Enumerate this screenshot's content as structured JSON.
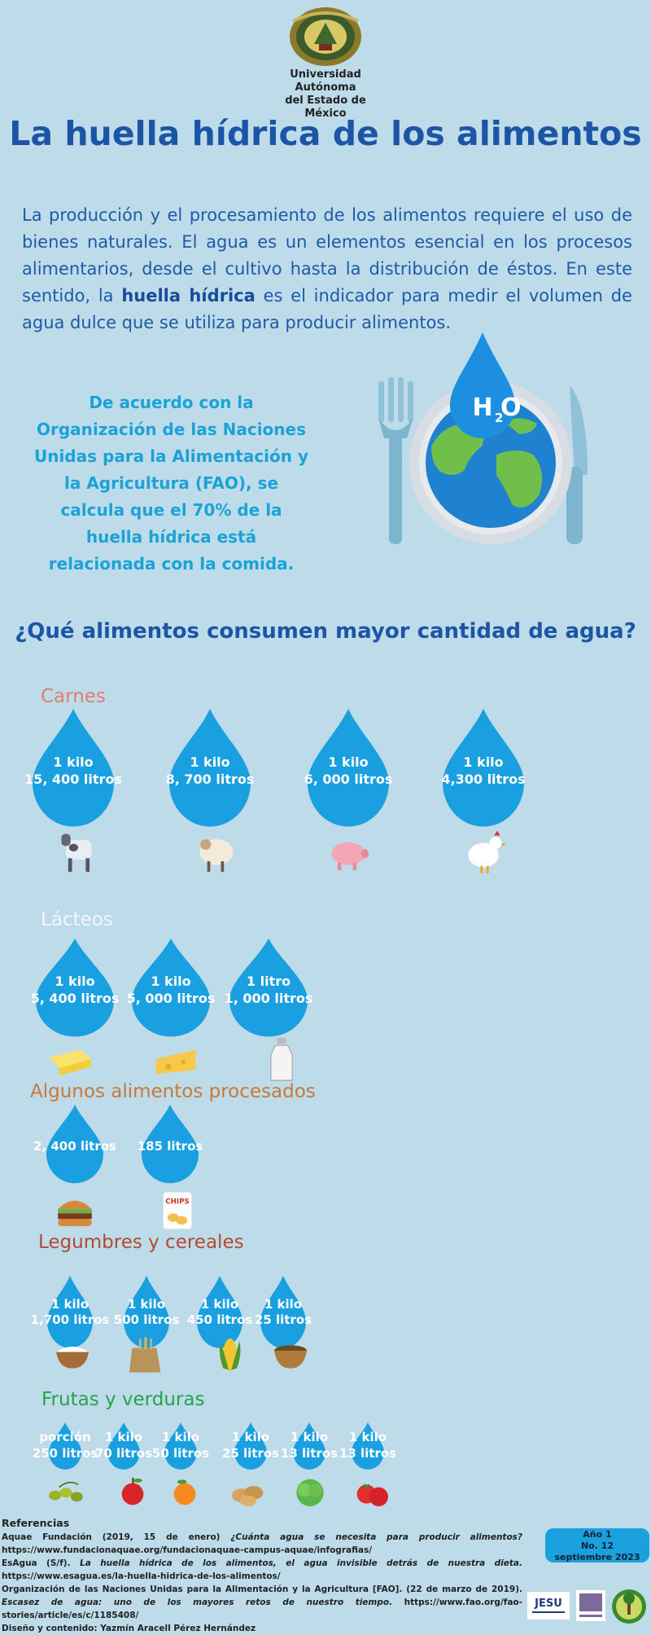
{
  "header": {
    "uni_line1": "Universidad Autónoma",
    "uni_line2": "del Estado de México"
  },
  "title": "La huella hídrica de los alimentos",
  "intro": {
    "before": "La producción y el procesamiento de los alimentos requiere el uso de bienes naturales. El agua es un elementos esencial  en los procesos alimentarios, desde el cultivo hasta la distribución de éstos. En este sentido, la ",
    "bold": "huella hídrica",
    "after": " es el indicador para medir el volumen de agua dulce que se utiliza para producir alimentos."
  },
  "fao_text": "De acuerdo con la Organización de las Naciones Unidas para la Alimentación y la Agricultura (FAO), se calcula que el 70% de la huella hídrica está relacionada con la comida.",
  "h2o": "H2O",
  "question": "¿Qué alimentos consumen mayor cantidad de agua?",
  "sections": [
    {
      "title": "Carnes",
      "color": "#e07f6e",
      "items": [
        {
          "l1": "1 kilo",
          "l2": "15, 400 litros",
          "icon": "cow-icon"
        },
        {
          "l1": "1 kilo",
          "l2": "8, 700 litros",
          "icon": "sheep-icon"
        },
        {
          "l1": "1 kilo",
          "l2": "6, 000 litros",
          "icon": "pig-icon"
        },
        {
          "l1": "1 kilo",
          "l2": "4,300 litros",
          "icon": "chicken-icon"
        }
      ]
    },
    {
      "title": "Lácteos",
      "color": "#f4f7fa",
      "items": [
        {
          "l1": "1 kilo",
          "l2": "5, 400 litros",
          "icon": "butter-icon"
        },
        {
          "l1": "1 kilo",
          "l2": "5, 000 litros",
          "icon": "cheese-icon"
        },
        {
          "l1": "1 litro",
          "l2": "1, 000 litros",
          "icon": "milk-bottle-icon"
        }
      ]
    },
    {
      "title": "Algunos alimentos procesados",
      "color": "#c9783a",
      "items": [
        {
          "l1": "",
          "l2": "2, 400 litros",
          "icon": "burger-icon"
        },
        {
          "l1": "",
          "l2": "185 litros",
          "icon": "chips-icon",
          "label": "CHIPS"
        }
      ]
    },
    {
      "title": "Legumbres y cereales",
      "color": "#b34a34",
      "items": [
        {
          "l1": "1 kilo",
          "l2": "1,700 litros",
          "icon": "rice-bowl-icon"
        },
        {
          "l1": "1 kilo",
          "l2": "500 litros",
          "icon": "wheat-sack-icon"
        },
        {
          "l1": "1 kilo",
          "l2": "450 litros",
          "icon": "corn-icon"
        },
        {
          "l1": "1 kilo",
          "l2": "25 litros",
          "icon": "lentils-bowl-icon"
        }
      ]
    },
    {
      "title": "Frutas y verduras",
      "color": "#27a24f",
      "items": [
        {
          "l1": "porción",
          "l2": "250 litros",
          "icon": "olives-icon"
        },
        {
          "l1": "1 kilo",
          "l2": "70 litros",
          "icon": "apple-icon"
        },
        {
          "l1": "1 kilo",
          "l2": "50 litros",
          "icon": "orange-icon"
        },
        {
          "l1": "1 kilo",
          "l2": "25 litros",
          "icon": "potatoes-icon"
        },
        {
          "l1": "1 kilo",
          "l2": "13 litros",
          "icon": "lettuce-icon"
        },
        {
          "l1": "1 kilo",
          "l2": "13 litros",
          "icon": "tomatoes-icon"
        }
      ]
    }
  ],
  "references": {
    "heading": "Referencias",
    "r1_a": "Aquae Fundación (2019, 15 de enero) ",
    "r1_i": "¿Cuánta agua se necesita para producir alimentos?",
    "r1_b": " https://www.fundacionaquae.org/fundacionaquae-campus-aquae/infografias/",
    "r2_a": "EsAgua (S/f). ",
    "r2_i": "La huella hídrica de los alimentos, el agua invisible detrás de nuestra dieta.",
    "r2_b": " https://www.esagua.es/la-huella-hidrica-de-los-alimentos/",
    "r3_a": "Organización de las Naciones Unidas para la Alimentación y la Agricultura [FAO]. (22 de marzo de 2019). ",
    "r3_i": "Escasez de agua: uno de los mayores retos de nuestro tiempo.",
    "r3_b": " https://www.fao.org/fao-stories/article/es/c/1185408/",
    "credits": "Diseño y contenido: Yazmín Aracell Pérez Hernández"
  },
  "badge": {
    "l1": "Año 1",
    "l2": "No. 12",
    "l3": "septiembre 2023"
  },
  "footer_logos": {
    "jesu": "JESU"
  }
}
